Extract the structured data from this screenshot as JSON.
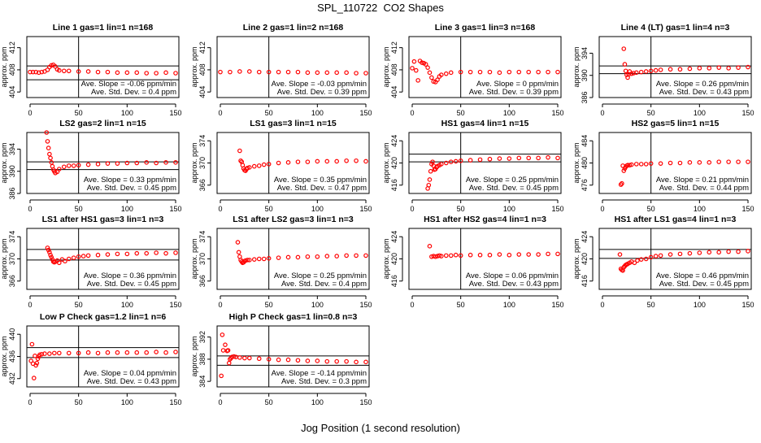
{
  "title": "SPL_110722  CO2 Shapes",
  "xlabel": "Jog Position (1 second resolution)",
  "ylabel": "approx. ppm",
  "colors": {
    "points": "#ff0000",
    "axes": "#000000"
  },
  "chart_data": [
    {
      "type": "scatter",
      "title": "Line 1 gas=1 lin=1 n=168",
      "xlim": [
        0,
        150
      ],
      "ylim": [
        403,
        414
      ],
      "xticks": [
        0,
        50,
        100,
        150
      ],
      "yticks": [
        404,
        408,
        412
      ],
      "vline": 50,
      "hlines": [
        408.7,
        406.2
      ],
      "slope_text": "Ave. Slope = -0.06  ppm/min",
      "sd_text": "Ave. Std. Dev. = 0.4  ppm",
      "series": {
        "x": [
          0,
          3,
          6,
          9,
          12,
          15,
          18,
          20,
          22,
          24,
          26,
          28,
          30,
          35,
          40,
          50,
          60,
          70,
          80,
          90,
          100,
          110,
          120,
          130,
          140,
          150
        ],
        "y": [
          407.6,
          407.6,
          407.6,
          407.5,
          407.6,
          407.7,
          408.0,
          408.5,
          408.8,
          408.9,
          408.6,
          408.1,
          407.9,
          407.8,
          407.8,
          407.7,
          407.7,
          407.6,
          407.6,
          407.5,
          407.5,
          407.5,
          407.4,
          407.4,
          407.5,
          407.4
        ]
      }
    },
    {
      "type": "scatter",
      "title": "Line 2 gas=1 lin=2 n=168",
      "xlim": [
        0,
        150
      ],
      "ylim": [
        403,
        414
      ],
      "xticks": [
        0,
        50,
        100,
        150
      ],
      "yticks": [
        404,
        408,
        412
      ],
      "vline": 50,
      "hlines": [],
      "slope_text": "Ave. Slope = -0.03  ppm/min",
      "sd_text": "Ave. Std. Dev. = 0.39  ppm",
      "series": {
        "x": [
          0,
          10,
          20,
          30,
          40,
          50,
          60,
          70,
          80,
          90,
          100,
          110,
          120,
          130,
          140,
          150
        ],
        "y": [
          407.6,
          407.6,
          407.7,
          407.7,
          407.6,
          407.6,
          407.6,
          407.6,
          407.6,
          407.5,
          407.5,
          407.5,
          407.5,
          407.5,
          407.4,
          407.4
        ]
      }
    },
    {
      "type": "scatter",
      "title": "Line 3 gas=1 lin=3 n=168",
      "xlim": [
        0,
        150
      ],
      "ylim": [
        403,
        414
      ],
      "xticks": [
        0,
        50,
        100,
        150
      ],
      "yticks": [
        404,
        408,
        412
      ],
      "vline": 50,
      "hlines": [],
      "slope_text": "Ave. Slope = 0  ppm/min",
      "sd_text": "Ave. Std. Dev. = 0.39  ppm",
      "series": {
        "x": [
          0,
          2,
          4,
          6,
          8,
          10,
          12,
          14,
          16,
          18,
          20,
          22,
          24,
          26,
          28,
          30,
          35,
          40,
          50,
          60,
          70,
          80,
          90,
          100,
          110,
          120,
          130,
          140,
          150
        ],
        "y": [
          408.3,
          409.5,
          407.9,
          406.1,
          409.6,
          409.3,
          409.2,
          409.0,
          408.4,
          407.5,
          406.6,
          405.9,
          405.8,
          406.2,
          406.8,
          407.1,
          407.3,
          407.5,
          407.6,
          407.6,
          407.6,
          407.6,
          407.5,
          407.6,
          407.6,
          407.6,
          407.6,
          407.6,
          407.6
        ]
      }
    },
    {
      "type": "scatter",
      "title": "Line 4 (LT) gas=1 lin=4 n=3",
      "xlim": [
        0,
        150
      ],
      "ylim": [
        386,
        397
      ],
      "xticks": [
        0,
        50,
        100,
        150
      ],
      "yticks": [
        386,
        390,
        394
      ],
      "vline": 50,
      "hlines": [
        391.7,
        390.3
      ],
      "slope_text": "Ave. Slope = 0.26  ppm/min",
      "sd_text": "Ave. Std. Dev. = 0.43  ppm",
      "series": {
        "x": [
          22,
          23,
          24,
          25,
          26,
          27,
          28,
          30,
          32,
          35,
          40,
          45,
          50,
          55,
          60,
          70,
          80,
          90,
          100,
          110,
          120,
          130,
          140,
          150
        ],
        "y": [
          394.8,
          392.0,
          390.8,
          390.1,
          389.6,
          390.2,
          390.7,
          390.3,
          390.4,
          390.5,
          390.6,
          390.7,
          390.8,
          390.9,
          391.0,
          391.1,
          391.1,
          391.2,
          391.3,
          391.3,
          391.4,
          391.3,
          391.4,
          391.5
        ]
      }
    },
    {
      "type": "scatter",
      "title": "LS2 gas=2 lin=1 n=15",
      "xlim": [
        0,
        150
      ],
      "ylim": [
        386,
        397
      ],
      "xticks": [
        0,
        50,
        100,
        150
      ],
      "yticks": [
        386,
        390,
        394
      ],
      "vline": 50,
      "hlines": [
        391.7,
        390.3
      ],
      "slope_text": "Ave. Slope = 0.33  ppm/min",
      "sd_text": "Ave. Std. Dev. = 0.45  ppm",
      "series": {
        "x": [
          17,
          18,
          19,
          20,
          21,
          22,
          23,
          24,
          25,
          26,
          28,
          30,
          35,
          40,
          45,
          50,
          60,
          70,
          80,
          90,
          100,
          110,
          120,
          130,
          140,
          150
        ],
        "y": [
          397.0,
          395.4,
          394.2,
          393.1,
          392.4,
          391.6,
          390.9,
          390.3,
          390.0,
          389.7,
          389.9,
          390.4,
          390.8,
          391.0,
          391.0,
          391.1,
          391.2,
          391.3,
          391.4,
          391.4,
          391.5,
          391.5,
          391.6,
          391.5,
          391.6,
          391.6
        ]
      }
    },
    {
      "type": "scatter",
      "title": "LS1 gas=3 lin=1 n=15",
      "xlim": [
        0,
        150
      ],
      "ylim": [
        364.5,
        375.5
      ],
      "xticks": [
        0,
        50,
        100,
        150
      ],
      "yticks": [
        366,
        370,
        374
      ],
      "vline": 50,
      "hlines": [],
      "slope_text": "Ave. Slope = 0.35  ppm/min",
      "sd_text": "Ave. Std. Dev. = 0.47  ppm",
      "series": {
        "x": [
          20,
          21,
          22,
          23,
          24,
          25,
          26,
          27,
          28,
          30,
          35,
          40,
          45,
          50,
          60,
          70,
          80,
          90,
          100,
          110,
          120,
          130,
          140,
          150
        ],
        "y": [
          372.2,
          370.4,
          370.2,
          369.6,
          369.0,
          368.7,
          368.6,
          368.9,
          369.1,
          369.2,
          369.4,
          369.5,
          369.7,
          369.8,
          370.0,
          370.1,
          370.2,
          370.2,
          370.3,
          370.3,
          370.3,
          370.4,
          370.4,
          370.3
        ]
      }
    },
    {
      "type": "scatter",
      "title": "HS1 gas=4 lin=1 n=15",
      "xlim": [
        0,
        150
      ],
      "ylim": [
        414.5,
        425.5
      ],
      "xticks": [
        0,
        50,
        100,
        150
      ],
      "yticks": [
        416,
        420,
        424
      ],
      "vline": 50,
      "hlines": [
        421.6,
        420.2
      ],
      "slope_text": "Ave. Slope = 0.25  ppm/min",
      "sd_text": "Ave. Std. Dev. = 0.45  ppm",
      "series": {
        "x": [
          16,
          17,
          18,
          19,
          20,
          21,
          22,
          23,
          24,
          25,
          26,
          28,
          30,
          35,
          40,
          45,
          50,
          60,
          70,
          80,
          90,
          100,
          110,
          120,
          130,
          140,
          150
        ],
        "y": [
          415.4,
          416.0,
          417.0,
          418.5,
          419.8,
          420.2,
          419.5,
          418.8,
          418.9,
          419.2,
          419.4,
          419.6,
          419.8,
          420.0,
          420.2,
          420.3,
          420.4,
          420.5,
          420.6,
          420.7,
          420.8,
          420.8,
          420.9,
          420.9,
          420.9,
          421.0,
          420.9
        ]
      }
    },
    {
      "type": "scatter",
      "title": "HS2 gas=5 lin=1 n=15",
      "xlim": [
        0,
        150
      ],
      "ylim": [
        474.5,
        485.5
      ],
      "xticks": [
        0,
        50,
        100,
        150
      ],
      "yticks": [
        476,
        480,
        484
      ],
      "vline": 50,
      "hlines": [],
      "slope_text": "Ave. Slope = 0.21  ppm/min",
      "sd_text": "Ave. Std. Dev. = 0.44  ppm",
      "series": {
        "x": [
          19,
          20,
          21,
          22,
          23,
          24,
          25,
          26,
          28,
          30,
          35,
          40,
          45,
          50,
          60,
          70,
          80,
          90,
          100,
          110,
          120,
          130,
          140,
          150
        ],
        "y": [
          476.1,
          476.3,
          479.5,
          478.6,
          479.0,
          479.3,
          479.5,
          479.6,
          479.6,
          479.7,
          479.8,
          479.8,
          479.8,
          479.9,
          479.9,
          480.0,
          480.0,
          480.1,
          480.1,
          480.1,
          480.2,
          480.2,
          480.2,
          480.2
        ]
      }
    },
    {
      "type": "scatter",
      "title": "LS1 after HS1 gas=3 lin=1 n=3",
      "xlim": [
        0,
        150
      ],
      "ylim": [
        364.5,
        375.5
      ],
      "xticks": [
        0,
        50,
        100,
        150
      ],
      "yticks": [
        366,
        370,
        374
      ],
      "vline": 50,
      "hlines": [
        371.7,
        369.8
      ],
      "slope_text": "Ave. Slope = 0.36  ppm/min",
      "sd_text": "Ave. Std. Dev. = 0.45  ppm",
      "series": {
        "x": [
          18,
          19,
          20,
          21,
          22,
          23,
          24,
          25,
          26,
          28,
          30,
          33,
          36,
          40,
          45,
          50,
          55,
          60,
          70,
          80,
          90,
          100,
          110,
          120,
          130,
          140,
          150
        ],
        "y": [
          372.0,
          371.6,
          371.2,
          370.7,
          370.3,
          369.9,
          369.5,
          369.4,
          369.5,
          369.7,
          369.3,
          369.9,
          369.6,
          370.0,
          370.2,
          370.4,
          370.5,
          370.6,
          370.7,
          370.8,
          370.9,
          370.9,
          371.0,
          371.0,
          371.1,
          371.0,
          371.1
        ]
      }
    },
    {
      "type": "scatter",
      "title": "LS1 after LS2 gas=3 lin=1 n=3",
      "xlim": [
        0,
        150
      ],
      "ylim": [
        364.5,
        375.5
      ],
      "xticks": [
        0,
        50,
        100,
        150
      ],
      "yticks": [
        366,
        370,
        374
      ],
      "vline": 50,
      "hlines": [],
      "slope_text": "Ave. Slope = 0.25  ppm/min",
      "sd_text": "Ave. Std. Dev. = 0.4  ppm",
      "series": {
        "x": [
          18,
          19,
          20,
          21,
          22,
          23,
          24,
          25,
          26,
          28,
          30,
          35,
          40,
          45,
          50,
          60,
          70,
          80,
          90,
          100,
          110,
          120,
          130,
          140,
          150
        ],
        "y": [
          373.0,
          371.2,
          370.4,
          369.8,
          369.5,
          369.3,
          369.4,
          369.6,
          369.7,
          369.8,
          369.8,
          369.9,
          370.0,
          370.0,
          370.1,
          370.2,
          370.3,
          370.3,
          370.4,
          370.4,
          370.5,
          370.5,
          370.6,
          370.6,
          370.6
        ]
      }
    },
    {
      "type": "scatter",
      "title": "HS1 after HS2 gas=4 lin=1 n=3",
      "xlim": [
        0,
        150
      ],
      "ylim": [
        414.5,
        425.5
      ],
      "xticks": [
        0,
        50,
        100,
        150
      ],
      "yticks": [
        416,
        420,
        424
      ],
      "vline": 50,
      "hlines": [],
      "slope_text": "Ave. Slope = 0.06  ppm/min",
      "sd_text": "Ave. Std. Dev. = 0.43  ppm",
      "series": {
        "x": [
          18,
          20,
          22,
          24,
          26,
          28,
          30,
          35,
          40,
          45,
          50,
          60,
          70,
          80,
          90,
          100,
          110,
          120,
          130,
          140,
          150
        ],
        "y": [
          422.3,
          420.4,
          420.5,
          420.4,
          420.5,
          420.6,
          420.5,
          420.6,
          420.6,
          420.7,
          420.6,
          420.7,
          420.7,
          420.7,
          420.8,
          420.7,
          420.8,
          420.8,
          420.8,
          420.9,
          420.9
        ]
      }
    },
    {
      "type": "scatter",
      "title": "HS1 after LS1 gas=4 lin=1 n=3",
      "xlim": [
        0,
        150
      ],
      "ylim": [
        414.5,
        425.5
      ],
      "xticks": [
        0,
        50,
        100,
        150
      ],
      "yticks": [
        416,
        420,
        424
      ],
      "vline": 50,
      "hlines": [
        421.7,
        420.1
      ],
      "slope_text": "Ave. Slope = 0.46  ppm/min",
      "sd_text": "Ave. Std. Dev. = 0.45  ppm",
      "series": {
        "x": [
          18,
          19,
          20,
          21,
          22,
          23,
          24,
          25,
          26,
          28,
          30,
          33,
          36,
          40,
          45,
          50,
          55,
          60,
          70,
          80,
          90,
          100,
          110,
          120,
          130,
          140,
          150
        ],
        "y": [
          420.8,
          418.2,
          418.0,
          417.9,
          418.5,
          418.7,
          418.9,
          419.0,
          419.1,
          419.3,
          419.5,
          419.3,
          419.7,
          419.9,
          420.0,
          420.3,
          420.5,
          420.6,
          420.8,
          420.9,
          421.0,
          421.1,
          421.2,
          421.2,
          421.3,
          421.3,
          421.4
        ]
      }
    },
    {
      "type": "scatter",
      "title": "Low P Check gas=1.2 lin=1 n=6",
      "xlim": [
        0,
        150
      ],
      "ylim": [
        430.5,
        441.5
      ],
      "xticks": [
        0,
        50,
        100,
        150
      ],
      "yticks": [
        432,
        436,
        440
      ],
      "vline": 50,
      "hlines": [
        437.6,
        435.8
      ],
      "slope_text": "Ave. Slope = 0.04  ppm/min",
      "sd_text": "Ave. Std. Dev. = 0.43  ppm",
      "series": {
        "x": [
          1,
          2,
          3,
          4,
          5,
          6,
          7,
          8,
          9,
          10,
          12,
          15,
          20,
          25,
          30,
          40,
          50,
          60,
          70,
          80,
          90,
          100,
          110,
          120,
          130,
          140,
          150
        ],
        "y": [
          435.2,
          438.2,
          434.7,
          432.1,
          436.1,
          434.4,
          434.8,
          435.6,
          436.0,
          436.3,
          436.4,
          436.5,
          436.5,
          436.6,
          436.6,
          436.6,
          436.6,
          436.7,
          436.6,
          436.7,
          436.7,
          436.7,
          436.7,
          436.7,
          436.8,
          436.7,
          436.8
        ]
      }
    },
    {
      "type": "scatter",
      "title": "High P Check gas=1 lin=0.8 n=3",
      "xlim": [
        0,
        150
      ],
      "ylim": [
        383,
        394
      ],
      "xticks": [
        0,
        50,
        100,
        150
      ],
      "yticks": [
        384,
        388,
        392
      ],
      "vline": 50,
      "hlines": [
        388.6,
        386.9
      ],
      "slope_text": "Ave. Slope = -0.14  ppm/min",
      "sd_text": "Ave. Std. Dev. = 0.3  ppm",
      "series": {
        "x": [
          1,
          2,
          3,
          5,
          7,
          8,
          9,
          10,
          11,
          12,
          14,
          16,
          20,
          25,
          30,
          40,
          50,
          60,
          70,
          80,
          90,
          100,
          110,
          120,
          130,
          140,
          150
        ],
        "y": [
          385.0,
          392.4,
          389.6,
          390.6,
          389.5,
          389.6,
          387.3,
          388.0,
          388.2,
          388.4,
          388.5,
          388.4,
          388.3,
          388.2,
          388.2,
          388.1,
          388.0,
          387.9,
          387.9,
          387.8,
          387.7,
          387.7,
          387.6,
          387.6,
          387.6,
          387.5,
          387.5
        ]
      }
    }
  ]
}
